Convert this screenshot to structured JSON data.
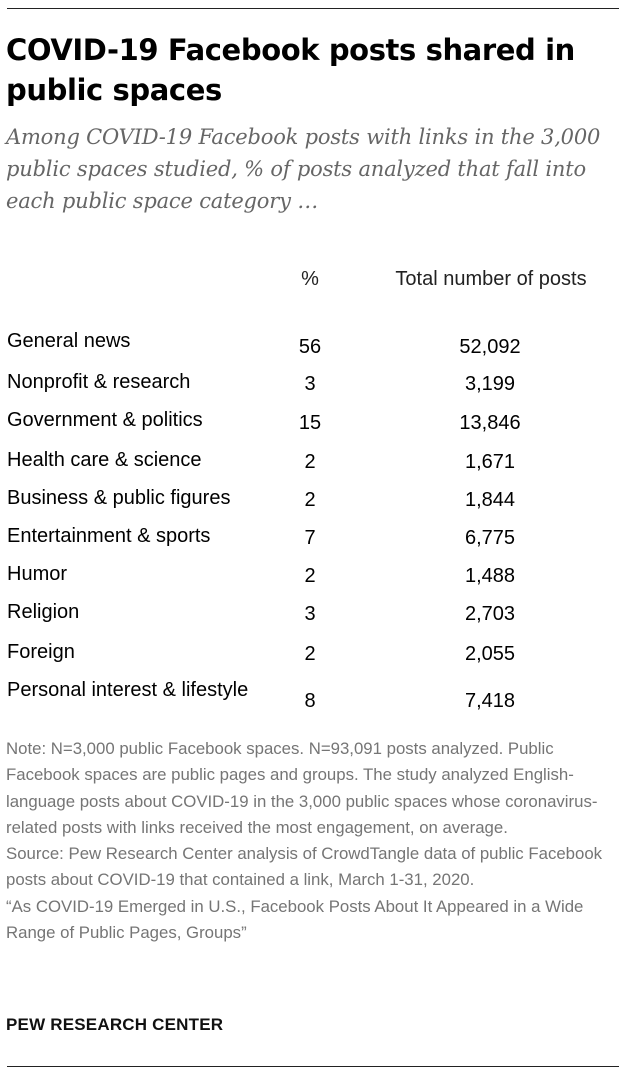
{
  "header": {
    "title": "COVID-19 Facebook posts shared in public spaces",
    "subtitle": "Among COVID-19 Facebook posts with links in the 3,000 public spaces studied, % of posts analyzed that fall into each public space category …"
  },
  "chart_data": {
    "type": "table",
    "columns": [
      "%",
      "Total number of posts"
    ],
    "rows": [
      {
        "category": "General news",
        "percent": "56",
        "total": "52,092"
      },
      {
        "category": "Nonprofit & research",
        "percent": "3",
        "total": "3,199"
      },
      {
        "category": "Government & politics",
        "percent": "15",
        "total": "13,846"
      },
      {
        "category": "Health care & science",
        "percent": "2",
        "total": "1,671"
      },
      {
        "category": "Business & public figures",
        "percent": "2",
        "total": "1,844"
      },
      {
        "category": "Entertainment & sports",
        "percent": "7",
        "total": "6,775"
      },
      {
        "category": "Humor",
        "percent": "2",
        "total": "1,488"
      },
      {
        "category": "Religion",
        "percent": "3",
        "total": "2,703"
      },
      {
        "category": "Foreign",
        "percent": "2",
        "total": "2,055"
      },
      {
        "category": "Personal interest & lifestyle",
        "percent": "8",
        "total": "7,418"
      }
    ]
  },
  "footer": {
    "note": "Note: N=3,000 public Facebook spaces. N=93,091 posts analyzed. Public Facebook spaces are public pages and groups. The study analyzed English-language posts about COVID-19 in the 3,000 public spaces whose coronavirus-related posts with links received the most engagement, on average.",
    "source": "Source: Pew Research Center analysis of CrowdTangle data of public Facebook posts about COVID-19 that contained a link, March 1-31, 2020.",
    "report": "“As COVID-19 Emerged in U.S., Facebook Posts About It Appeared in a Wide Range of Public Pages, Groups”",
    "brand": "PEW RESEARCH CENTER"
  },
  "colors": {
    "title": "#000000",
    "subtitle": "#666666",
    "notes": "#757575",
    "rule": "#222222"
  }
}
